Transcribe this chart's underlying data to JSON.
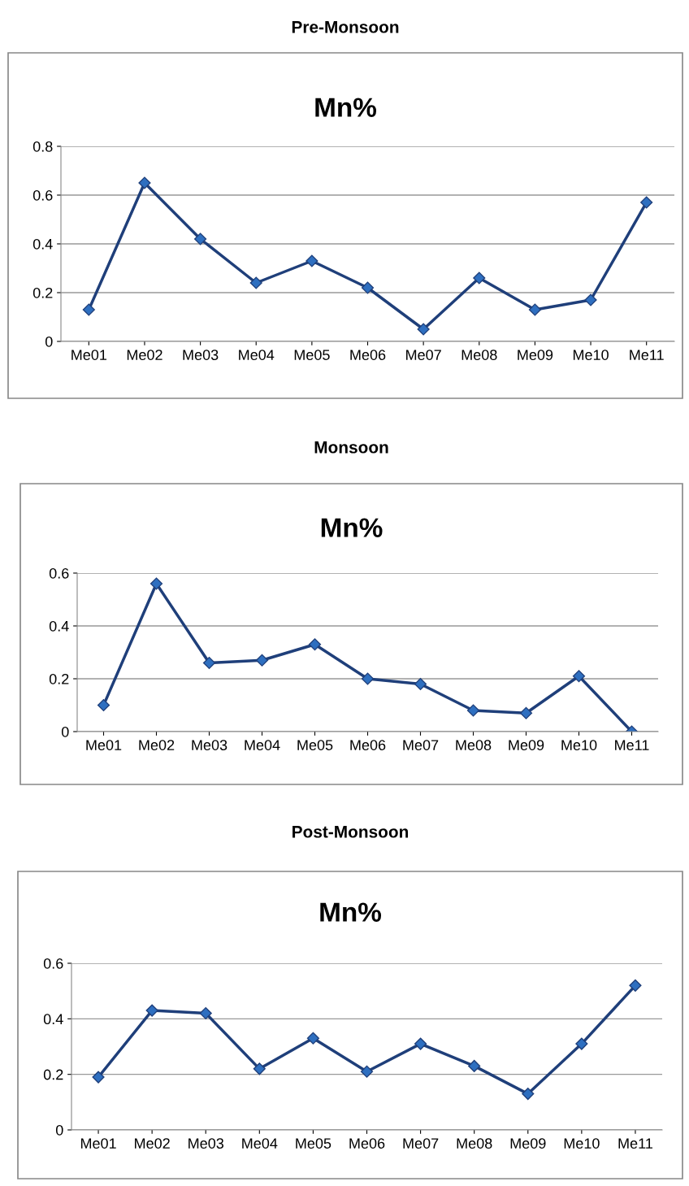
{
  "chart_data": [
    {
      "type": "line",
      "title": "Pre-Monsoon",
      "subtitle": "Mn%",
      "categories": [
        "Me01",
        "Me02",
        "Me03",
        "Me04",
        "Me05",
        "Me06",
        "Me07",
        "Me08",
        "Me09",
        "Me10",
        "Me11"
      ],
      "series": [
        {
          "color": "#1f3f7a",
          "values": [
            0.13,
            0.65,
            0.42,
            0.24,
            0.33,
            0.22,
            0.05,
            0.26,
            0.13,
            0.17,
            0.57
          ]
        }
      ],
      "ylim": [
        0,
        0.8
      ],
      "yticks": [
        0,
        0.2,
        0.4,
        0.6,
        0.8
      ],
      "grid": "y",
      "marker": "diamond"
    },
    {
      "type": "line",
      "title": "Monsoon",
      "subtitle": "Mn%",
      "categories": [
        "Me01",
        "Me02",
        "Me03",
        "Me04",
        "Me05",
        "Me06",
        "Me07",
        "Me08",
        "Me09",
        "Me10",
        "Me11"
      ],
      "series": [
        {
          "color": "#1f3f7a",
          "values": [
            0.1,
            0.56,
            0.26,
            0.27,
            0.33,
            0.2,
            0.18,
            0.08,
            0.07,
            0.21,
            0.0
          ]
        }
      ],
      "ylim": [
        0,
        0.6
      ],
      "yticks": [
        0,
        0.2,
        0.4,
        0.6
      ],
      "grid": "y",
      "marker": "diamond"
    },
    {
      "type": "line",
      "title": "Post-Monsoon",
      "subtitle": "Mn%",
      "categories": [
        "Me01",
        "Me02",
        "Me03",
        "Me04",
        "Me05",
        "Me06",
        "Me07",
        "Me08",
        "Me09",
        "Me10",
        "Me11"
      ],
      "series": [
        {
          "color": "#1f3f7a",
          "values": [
            0.19,
            0.43,
            0.42,
            0.22,
            0.33,
            0.21,
            0.31,
            0.23,
            0.13,
            0.31,
            0.52
          ]
        }
      ],
      "ylim": [
        0,
        0.6
      ],
      "yticks": [
        0,
        0.2,
        0.4,
        0.6
      ],
      "grid": "y",
      "marker": "diamond"
    }
  ]
}
